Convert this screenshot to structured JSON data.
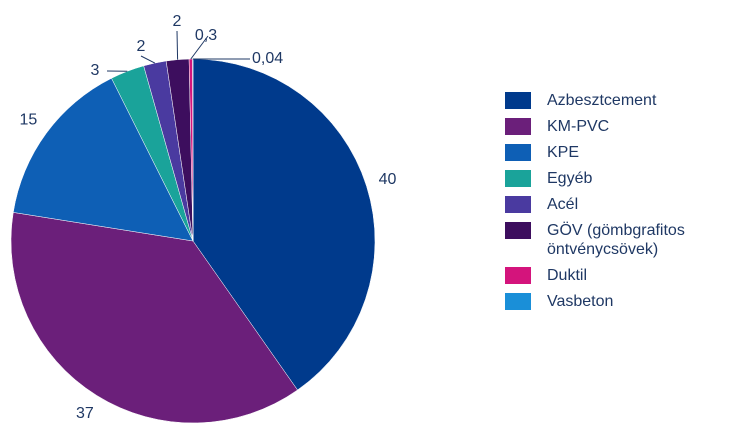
{
  "chart_data": {
    "type": "pie",
    "categories": [
      "Azbesztcement",
      "KM-PVC",
      "KPE",
      "Egyéb",
      "Acél",
      "GÖV (gömbgrafitos öntvénycsövek)",
      "Duktil",
      "Vasbeton"
    ],
    "values": [
      40,
      37,
      15,
      3,
      2,
      2,
      0.3,
      0.04
    ],
    "value_labels": [
      "40",
      "37",
      "15",
      "3",
      "2",
      "2",
      "0,3",
      "0,04"
    ],
    "colors": [
      "#003a8c",
      "#6b1f7a",
      "#0e5fb5",
      "#1aa39a",
      "#4a3aa0",
      "#3d0e5e",
      "#d4147c",
      "#1a8fd8"
    ]
  }
}
